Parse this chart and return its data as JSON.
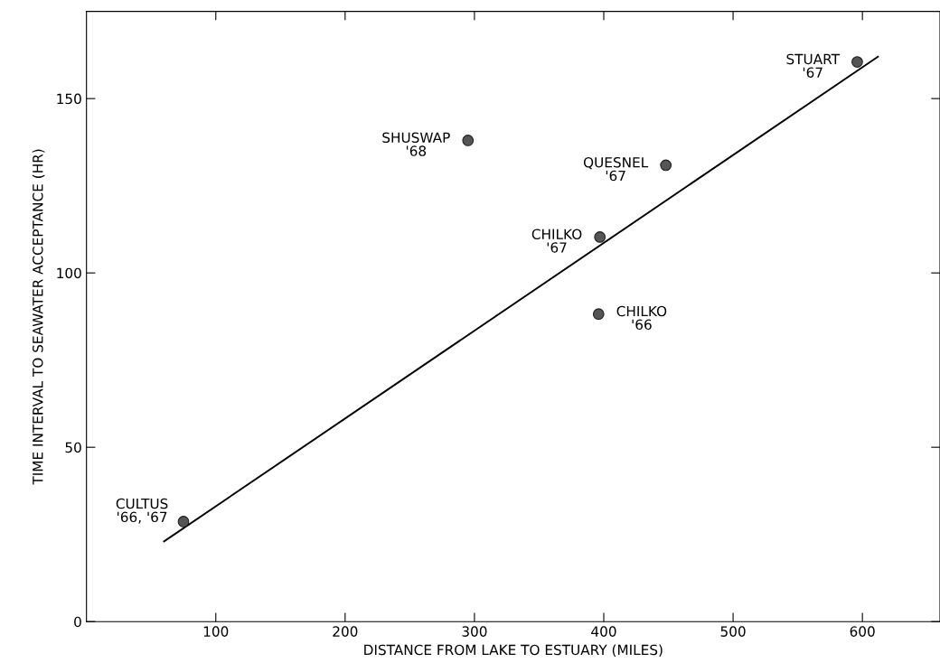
{
  "chart_data": {
    "type": "scatter",
    "xlabel": "DISTANCE FROM LAKE TO ESTUARY (MILES)",
    "ylabel": "TIME INTERVAL TO SEAWATER ACCEPTANCE (HR)",
    "xlim": [
      0,
      660
    ],
    "ylim": [
      0,
      175
    ],
    "xticks": [
      100,
      200,
      300,
      400,
      500,
      600
    ],
    "yticks": [
      0,
      50,
      100,
      150
    ],
    "grid": false,
    "legend": false,
    "series": [
      {
        "marker": "circle",
        "color": "#555555",
        "x": [
          75,
          295,
          397,
          396,
          448,
          596
        ],
        "values": [
          28.7,
          138,
          110.3,
          88.2,
          130.9,
          160.5
        ]
      },
      {
        "type": "line",
        "marker": "none",
        "color": "#000000",
        "x": [
          60,
          612
        ],
        "values": [
          23,
          162
        ]
      }
    ],
    "annotations": [
      {
        "text": "CULTUS\n'66, '67",
        "x": 75,
        "y": 28.7
      },
      {
        "text": "SHUSWAP\n'68",
        "x": 295,
        "y": 138
      },
      {
        "text": "CHILKO\n'67",
        "x": 397,
        "y": 110.3
      },
      {
        "text": "CHILKO\n'66",
        "x": 396,
        "y": 88.2
      },
      {
        "text": "QUESNEL\n'67",
        "x": 448,
        "y": 130.9
      },
      {
        "text": "STUART\n'67",
        "x": 596,
        "y": 160.5
      }
    ]
  }
}
